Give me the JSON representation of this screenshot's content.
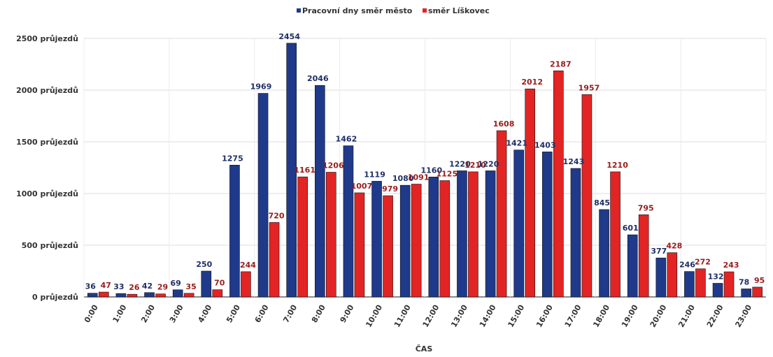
{
  "chart_data": {
    "type": "bar",
    "title": "",
    "xlabel": "ČAS",
    "ylabel": "",
    "ylim": [
      0,
      2500
    ],
    "y_ticks": [
      {
        "value": 0,
        "label": "0 průjezdů"
      },
      {
        "value": 500,
        "label": "500 průjezdů"
      },
      {
        "value": 1000,
        "label": "1000 průjezdů"
      },
      {
        "value": 1500,
        "label": "1500 průjezdů"
      },
      {
        "value": 2000,
        "label": "2000 průjezdů"
      },
      {
        "value": 2500,
        "label": "2500 průjezdů"
      }
    ],
    "grid": true,
    "legend_position": "top-center",
    "categories": [
      "0:00",
      "1:00",
      "2:00",
      "3:00",
      "4:00",
      "5:00",
      "6:00",
      "7:00",
      "8:00",
      "9:00",
      "10:00",
      "11:00",
      "12:00",
      "13:00",
      "14:00",
      "15:00",
      "16:00",
      "17:00",
      "18:00",
      "19:00",
      "20:00",
      "21:00",
      "22:00",
      "23:00"
    ],
    "series": [
      {
        "name": "Pracovní dny směr město",
        "color": "#1f3a8a",
        "values": [
          36,
          33,
          42,
          69,
          250,
          1275,
          1969,
          2454,
          2046,
          1462,
          1119,
          1080,
          1160,
          1220,
          1220,
          1421,
          1403,
          1243,
          845,
          601,
          377,
          246,
          132,
          78
        ]
      },
      {
        "name": "směr Líškovec",
        "color": "#e32424",
        "values": [
          47,
          26,
          29,
          35,
          70,
          244,
          720,
          1161,
          1206,
          1007,
          979,
          1091,
          1125,
          1210,
          1608,
          2012,
          2187,
          1957,
          1210,
          795,
          428,
          272,
          243,
          95
        ]
      }
    ]
  }
}
